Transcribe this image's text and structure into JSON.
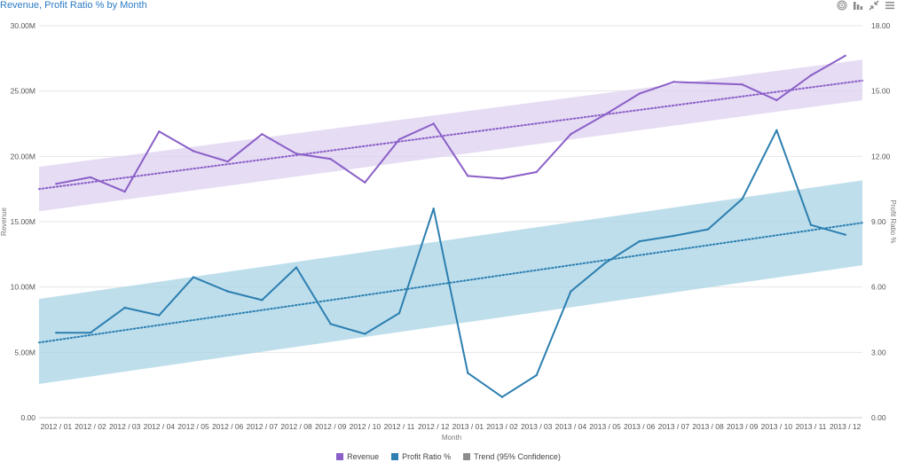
{
  "header": {
    "title": "Revenue, Profit Ratio % by Month",
    "tools": [
      {
        "name": "target-icon"
      },
      {
        "name": "bar-chart-icon"
      },
      {
        "name": "collapse-icon"
      },
      {
        "name": "menu-icon"
      }
    ]
  },
  "colors": {
    "revenue": "#8a5fc7",
    "revenue_band": "#ddd0f0",
    "profit": "#2c7fb0",
    "profit_band": "#a8d3e6",
    "trend": "#8c8c8c",
    "grid": "#e6e6e6"
  },
  "legend": [
    {
      "label": "Revenue",
      "color": "#8a5fc7"
    },
    {
      "label": "Profit Ratio %",
      "color": "#2c7fb0"
    },
    {
      "label": "Trend (95% Confidence)",
      "color": "#8c8c8c"
    }
  ],
  "chart_data": {
    "type": "line",
    "title": "Revenue, Profit Ratio % by Month",
    "xlabel": "Month",
    "ylabel": "Revenue",
    "y2label": "Profit Ratio %",
    "categories": [
      "2012 / 01",
      "2012 / 02",
      "2012 / 03",
      "2012 / 04",
      "2012 / 05",
      "2012 / 06",
      "2012 / 07",
      "2012 / 08",
      "2012 / 09",
      "2012 / 10",
      "2012 / 11",
      "2012 / 12",
      "2013 / 01",
      "2013 / 02",
      "2013 / 03",
      "2013 / 04",
      "2013 / 05",
      "2013 / 06",
      "2013 / 07",
      "2013 / 08",
      "2013 / 09",
      "2013 / 10",
      "2013 / 11",
      "2013 / 12"
    ],
    "ylim": [
      0,
      30000000
    ],
    "y2lim": [
      0,
      18
    ],
    "yticks": [
      "0.00",
      "5.00M",
      "10.00M",
      "15.00M",
      "20.00M",
      "25.00M",
      "30.00M"
    ],
    "y2ticks": [
      "0.00",
      "3.00",
      "6.00",
      "9.00",
      "12.00",
      "15.00",
      "18.00"
    ],
    "series": [
      {
        "name": "Revenue",
        "axis": "left",
        "values": [
          17900000,
          18400000,
          17300000,
          21900000,
          20400000,
          19600000,
          21700000,
          20200000,
          19800000,
          18000000,
          21300000,
          22500000,
          18500000,
          18300000,
          18800000,
          21700000,
          23200000,
          24800000,
          25700000,
          25600000,
          25500000,
          24300000,
          26200000,
          27700000
        ],
        "trend": {
          "start": 17500000,
          "end": 25800000,
          "band_low": [
            15800000,
            24300000
          ],
          "band_high": [
            19200000,
            27400000
          ]
        }
      },
      {
        "name": "Profit Ratio %",
        "axis": "right",
        "values": [
          3.9,
          3.9,
          5.05,
          4.7,
          6.45,
          5.8,
          5.4,
          6.9,
          4.3,
          3.85,
          4.8,
          9.6,
          2.05,
          0.95,
          1.95,
          5.8,
          7.1,
          8.1,
          8.35,
          8.65,
          10.05,
          13.2,
          8.85,
          8.4
        ],
        "trend": {
          "start": 3.45,
          "end": 8.95,
          "band_low": [
            1.55,
            7.0
          ],
          "band_high": [
            5.45,
            10.9
          ]
        }
      }
    ],
    "grid": true,
    "legend_position": "bottom"
  }
}
